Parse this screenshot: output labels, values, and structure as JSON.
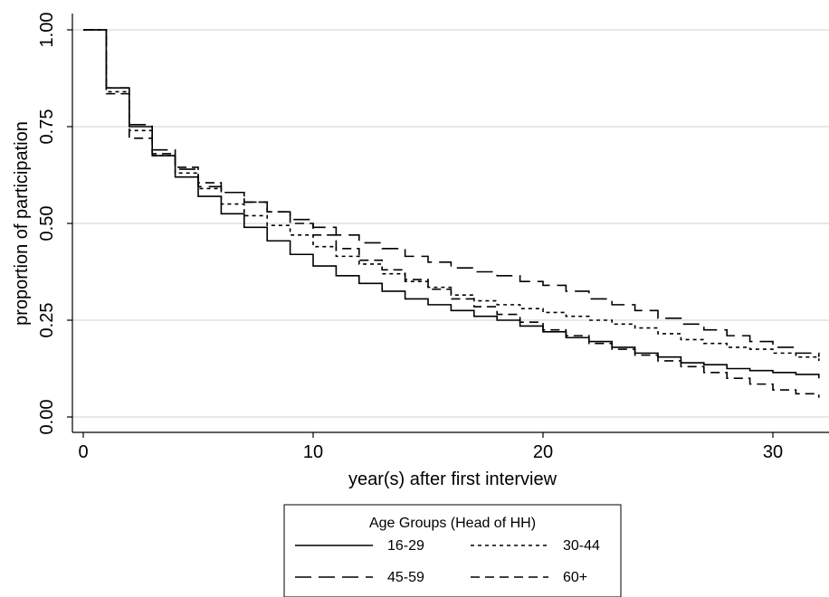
{
  "chart_data": {
    "type": "line",
    "title": "",
    "xlabel": "year(s) after first interview",
    "ylabel": "proportion of participation",
    "xlim": [
      0,
      32
    ],
    "ylim": [
      0,
      1
    ],
    "x_ticks": [
      {
        "value": 0,
        "label": "0"
      },
      {
        "value": 10,
        "label": "10"
      },
      {
        "value": 20,
        "label": "20"
      },
      {
        "value": 30,
        "label": "30"
      }
    ],
    "y_ticks": [
      {
        "value": 0,
        "label": "0.00"
      },
      {
        "value": 0.25,
        "label": "0.25"
      },
      {
        "value": 0.5,
        "label": "0.50"
      },
      {
        "value": 0.75,
        "label": "0.75"
      },
      {
        "value": 1,
        "label": "1.00"
      }
    ],
    "grid": "horizontal",
    "step": true,
    "legend": {
      "title": "Age Groups (Head of HH)",
      "placement": "bottom"
    },
    "series": [
      {
        "name": "16-29",
        "dash": "solid",
        "x": [
          0,
          1,
          2,
          3,
          4,
          5,
          6,
          7,
          8,
          9,
          10,
          11,
          12,
          13,
          14,
          15,
          16,
          17,
          18,
          19,
          20,
          21,
          22,
          23,
          24,
          25,
          26,
          27,
          28,
          29,
          30,
          31,
          32
        ],
        "y": [
          1.0,
          0.85,
          0.75,
          0.675,
          0.62,
          0.57,
          0.525,
          0.49,
          0.455,
          0.42,
          0.39,
          0.365,
          0.345,
          0.325,
          0.305,
          0.29,
          0.275,
          0.26,
          0.25,
          0.235,
          0.22,
          0.205,
          0.195,
          0.18,
          0.165,
          0.155,
          0.14,
          0.135,
          0.125,
          0.12,
          0.115,
          0.11,
          0.1
        ]
      },
      {
        "name": "30-44",
        "dash": "short",
        "x": [
          0,
          1,
          2,
          3,
          4,
          5,
          6,
          7,
          8,
          9,
          10,
          11,
          12,
          13,
          14,
          15,
          16,
          17,
          18,
          19,
          20,
          21,
          22,
          23,
          24,
          25,
          26,
          27,
          28,
          29,
          30,
          31,
          32
        ],
        "y": [
          1.0,
          0.84,
          0.74,
          0.675,
          0.63,
          0.59,
          0.55,
          0.52,
          0.495,
          0.47,
          0.44,
          0.415,
          0.395,
          0.37,
          0.35,
          0.335,
          0.315,
          0.3,
          0.29,
          0.28,
          0.27,
          0.26,
          0.25,
          0.24,
          0.23,
          0.215,
          0.2,
          0.19,
          0.18,
          0.175,
          0.165,
          0.155,
          0.145
        ]
      },
      {
        "name": "45-59",
        "dash": "long",
        "x": [
          0,
          1,
          2,
          3,
          4,
          5,
          6,
          7,
          8,
          9,
          10,
          11,
          12,
          13,
          14,
          15,
          16,
          17,
          18,
          19,
          20,
          21,
          22,
          23,
          24,
          25,
          26,
          27,
          28,
          29,
          30,
          31,
          32
        ],
        "y": [
          1.0,
          0.85,
          0.755,
          0.69,
          0.64,
          0.595,
          0.58,
          0.555,
          0.53,
          0.51,
          0.49,
          0.47,
          0.45,
          0.435,
          0.415,
          0.4,
          0.385,
          0.375,
          0.365,
          0.35,
          0.34,
          0.325,
          0.305,
          0.29,
          0.275,
          0.255,
          0.24,
          0.225,
          0.21,
          0.195,
          0.18,
          0.165,
          0.155
        ]
      },
      {
        "name": "60+",
        "dash": "medium",
        "x": [
          0,
          1,
          2,
          3,
          4,
          5,
          6,
          7,
          8,
          9,
          10,
          11,
          12,
          13,
          14,
          15,
          16,
          17,
          18,
          19,
          20,
          21,
          22,
          23,
          24,
          25,
          26,
          27,
          28,
          29,
          30,
          31,
          32
        ],
        "y": [
          1.0,
          0.835,
          0.72,
          0.68,
          0.645,
          0.605,
          0.58,
          0.555,
          0.53,
          0.5,
          0.47,
          0.435,
          0.405,
          0.38,
          0.355,
          0.33,
          0.305,
          0.285,
          0.265,
          0.245,
          0.225,
          0.21,
          0.19,
          0.175,
          0.16,
          0.145,
          0.13,
          0.115,
          0.1,
          0.085,
          0.07,
          0.06,
          0.05
        ]
      }
    ]
  }
}
